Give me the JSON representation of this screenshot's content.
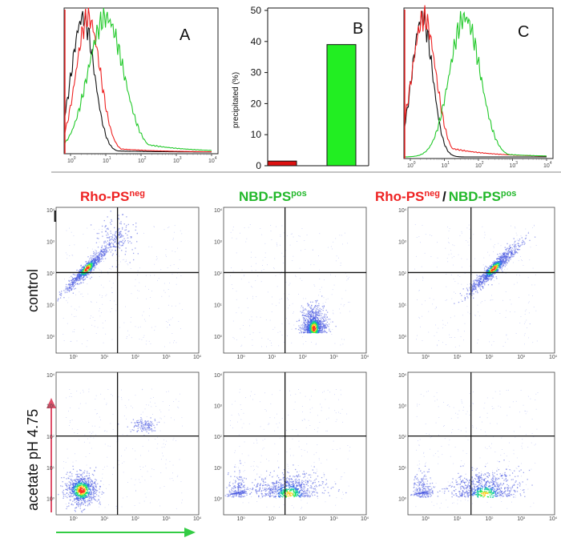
{
  "colors": {
    "red": "#ee2222",
    "green": "#22c92a",
    "black": "#111111",
    "bar_red": "#dd1111",
    "bar_green": "#22ee22",
    "arrow_red": "#e0506a",
    "arrow_green": "#33cc44"
  },
  "panel_labels": {
    "a": "A",
    "b": "B",
    "c": "C",
    "d": "D"
  },
  "headers": {
    "col1_main": "Rho-PS",
    "col1_sup": "neg",
    "col2_main": "NBD-PS",
    "col2_sup": "pos",
    "col3_a_main": "Rho-PS",
    "col3_a_sup": "neg",
    "col3_sep": "/",
    "col3_b_main": "NBD-PS",
    "col3_b_sup": "pos"
  },
  "row_labels": {
    "row1": "control",
    "row2": "acetate pH 4.75"
  },
  "log_ticks": {
    "base": "10",
    "exps": [
      "0",
      "1",
      "2",
      "3",
      "4"
    ]
  },
  "chart_data": [
    {
      "type": "line",
      "panel": "A",
      "xscale": "log",
      "xlim": [
        0.5,
        10000
      ],
      "xticks": [
        "10^0",
        "10^1",
        "10^2",
        "10^3",
        "10^4"
      ],
      "series": [
        {
          "color": "black",
          "peak_log": 0.35,
          "width": 0.32,
          "tail": 0.02
        },
        {
          "color": "red",
          "peak_log": 0.5,
          "width": 0.34,
          "tail": 0.05
        },
        {
          "color": "green",
          "peak_log": 1.0,
          "width": 0.5,
          "tail": 0.15
        }
      ]
    },
    {
      "type": "bar",
      "panel": "B",
      "categories": [
        "",
        ""
      ],
      "values": [
        1.5,
        39
      ],
      "ylabel": "precipitated (%)",
      "ylim": [
        0,
        50
      ],
      "yticks": [
        0,
        10,
        20,
        30,
        40,
        50
      ]
    },
    {
      "type": "line",
      "panel": "C",
      "xscale": "log",
      "xlim": [
        0.5,
        10000
      ],
      "xticks": [
        "10^0",
        "10^1",
        "10^2",
        "10^3",
        "10^4"
      ],
      "series": [
        {
          "color": "black",
          "peak_log": 0.35,
          "width": 0.3,
          "tail": 0.0
        },
        {
          "color": "red",
          "peak_log": 0.4,
          "width": 0.35,
          "tail": 0.12
        },
        {
          "color": "green",
          "peak_log": 1.6,
          "width": 0.45,
          "tail": 0.05
        }
      ]
    },
    {
      "type": "scatter",
      "panel": "D",
      "grid": "2x3 density dot plots",
      "xscale": "log",
      "yscale": "log",
      "xlim": [
        0.5,
        10000
      ],
      "ylim": [
        0.5,
        10000
      ],
      "quadrant_x": 30,
      "quadrant_y": 110,
      "plots": [
        {
          "row": "control",
          "column": "Rho-PS neg",
          "population": "diagonal high-red, low-green",
          "center": [
            3,
            150
          ]
        },
        {
          "row": "control",
          "column": "NBD-PS pos",
          "population": "high-green, low-red",
          "center": [
            250,
            2
          ]
        },
        {
          "row": "control",
          "column": "Rho-PS neg / NBD-PS pos",
          "population": "double positive diagonal",
          "center": [
            150,
            150
          ]
        },
        {
          "row": "acetate pH 4.75",
          "column": "Rho-PS neg",
          "population": "low-low with minor diagonal",
          "center": [
            2,
            2
          ]
        },
        {
          "row": "acetate pH 4.75",
          "column": "NBD-PS pos",
          "population": "broad low-red spread in green",
          "center": [
            40,
            1.5
          ]
        },
        {
          "row": "acetate pH 4.75",
          "column": "Rho-PS neg / NBD-PS pos",
          "population": "broad low-red spread in green",
          "center": [
            80,
            1.5
          ]
        }
      ]
    }
  ]
}
